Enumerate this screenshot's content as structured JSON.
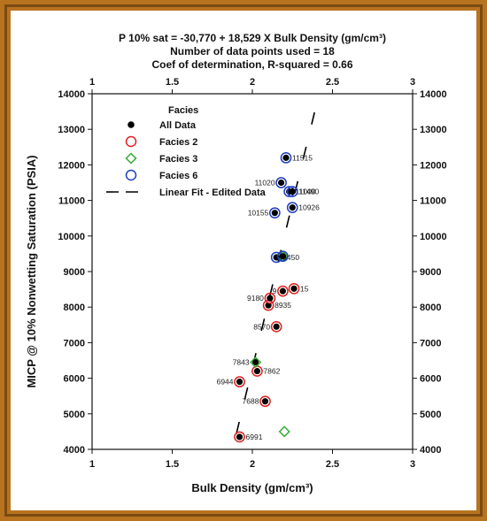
{
  "chart_data": {
    "type": "scatter",
    "title_lines": [
      "P 10% sat = -30,770 + 18,529 X Bulk Density (gm/cm³)",
      "Number of data points used = 18",
      "Coef of determination, R-squared = 0.66"
    ],
    "xlabel": "Bulk Density (gm/cm³)",
    "ylabel": "MICP @ 10% Nonwetting Saturation (PSIA)",
    "xlim": [
      1,
      3
    ],
    "ylim": [
      4000,
      14000
    ],
    "x_ticks": [
      1,
      1.5,
      2,
      2.5,
      3
    ],
    "x_tick_labels": [
      "1",
      "1.5",
      "2",
      "2.5",
      "3"
    ],
    "y_ticks": [
      4000,
      5000,
      6000,
      7000,
      8000,
      9000,
      10000,
      11000,
      12000,
      13000,
      14000
    ],
    "y_tick_labels": [
      "4000",
      "5000",
      "6000",
      "7000",
      "8000",
      "9000",
      "10000",
      "11000",
      "12000",
      "13000",
      "14000"
    ],
    "grid": false,
    "legend": {
      "title": "Facies",
      "placement": "top-left",
      "entries": [
        "All Data",
        "Facies 2",
        "Facies 3",
        "Facies 6",
        "Linear Fit - Edited Data"
      ]
    },
    "colors": {
      "all_data": "#000000",
      "facies2": "#e02020",
      "facies3": "#33aa33",
      "facies6": "#1f3fbf",
      "fit": "#000000"
    },
    "series": [
      {
        "name": "Facies 2",
        "points": [
          {
            "x": 1.92,
            "y": 4350,
            "label": "6991"
          },
          {
            "x": 2.08,
            "y": 5350,
            "label": "7688"
          },
          {
            "x": 1.92,
            "y": 5900,
            "label": "6944"
          },
          {
            "x": 2.03,
            "y": 6200,
            "label": "7862"
          },
          {
            "x": 2.15,
            "y": 7450,
            "label": "8570"
          },
          {
            "x": 2.1,
            "y": 8050,
            "label": "8935"
          },
          {
            "x": 2.11,
            "y": 8250,
            "label": "9180"
          },
          {
            "x": 2.19,
            "y": 8450,
            "label": "9"
          },
          {
            "x": 2.26,
            "y": 8520,
            "label": "15"
          }
        ]
      },
      {
        "name": "Facies 3",
        "points": [
          {
            "x": 2.02,
            "y": 6450,
            "label": "7843"
          },
          {
            "x": 2.19,
            "y": 9430,
            "label": ""
          },
          {
            "x": 2.2,
            "y": 4500,
            "label": ""
          }
        ]
      },
      {
        "name": "Facies 6",
        "points": [
          {
            "x": 2.21,
            "y": 12200,
            "label": "11515"
          },
          {
            "x": 2.18,
            "y": 11500,
            "label": "11020"
          },
          {
            "x": 2.23,
            "y": 11250,
            "label": "11000"
          },
          {
            "x": 2.25,
            "y": 11250,
            "label": "11490"
          },
          {
            "x": 2.25,
            "y": 10800,
            "label": "10926"
          },
          {
            "x": 2.14,
            "y": 10650,
            "label": "10155"
          },
          {
            "x": 2.15,
            "y": 9400,
            "label": "9450"
          },
          {
            "x": 2.19,
            "y": 9430,
            "label": ""
          }
        ]
      }
    ],
    "fit_line": {
      "x": [
        1.9,
        2.4
      ],
      "y": [
        4435,
        13700
      ]
    }
  }
}
